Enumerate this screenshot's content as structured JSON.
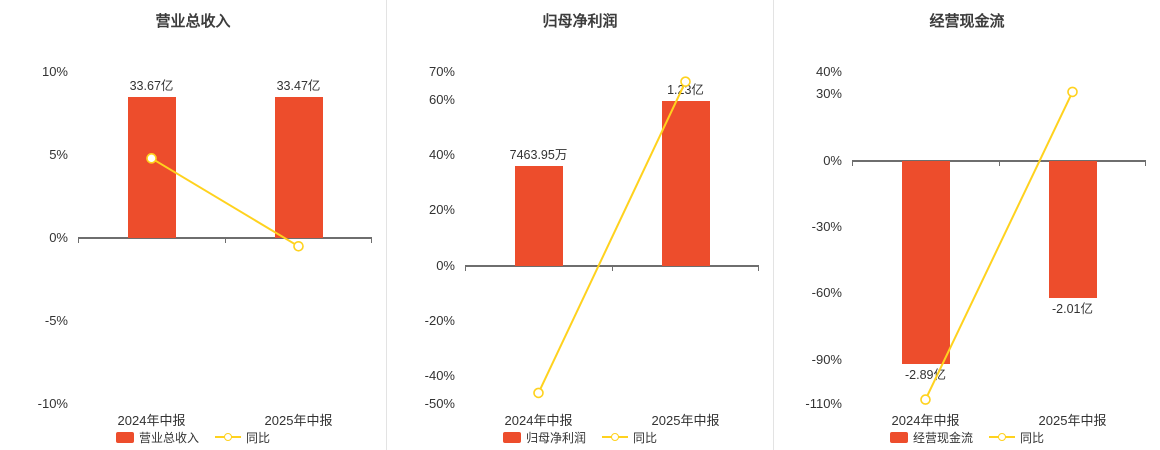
{
  "colors": {
    "bar": "#ed4d2c",
    "line": "#ffd21e",
    "marker_fill": "#ffffff",
    "zero_axis": "#6e6e6e",
    "text": "#333333",
    "separator": "#e3e3e3",
    "background": "#ffffff"
  },
  "chart_data": [
    {
      "type": "bar",
      "overlay": "line",
      "title": "营业总收入",
      "categories": [
        "2024年中报",
        "2025年中报"
      ],
      "bar_series": {
        "name": "营业总收入",
        "labels": [
          "33.67亿",
          "33.47亿"
        ],
        "axis_values": [
          8.5,
          8.5
        ]
      },
      "line_series": {
        "name": "同比",
        "values": [
          4.8,
          -0.5
        ]
      },
      "y_ticks": [
        10,
        5,
        0,
        -5,
        -10
      ],
      "ylim": [
        -10,
        10
      ],
      "tick_suffix": "%",
      "legend_position": "bottom",
      "grid": "off"
    },
    {
      "type": "bar",
      "overlay": "line",
      "title": "归母净利润",
      "categories": [
        "2024年中报",
        "2025年中报"
      ],
      "bar_series": {
        "name": "归母净利润",
        "labels": [
          "7463.95万",
          "1.23亿"
        ],
        "axis_values": [
          36,
          59.5
        ]
      },
      "line_series": {
        "name": "同比",
        "values": [
          -46,
          66.5
        ]
      },
      "y_ticks": [
        70,
        60,
        40,
        20,
        0,
        -20,
        -40,
        -50
      ],
      "ylim": [
        -50,
        70
      ],
      "tick_suffix": "%",
      "legend_position": "bottom",
      "grid": "off"
    },
    {
      "type": "bar",
      "overlay": "line",
      "title": "经营现金流",
      "categories": [
        "2024年中报",
        "2025年中报"
      ],
      "bar_series": {
        "name": "经营现金流",
        "labels": [
          "-2.89亿",
          "-2.01亿"
        ],
        "axis_values": [
          -92,
          -62
        ]
      },
      "line_series": {
        "name": "同比",
        "values": [
          -108,
          31
        ]
      },
      "y_ticks": [
        40,
        30,
        0,
        -30,
        -60,
        -90,
        -110
      ],
      "ylim": [
        -110,
        40
      ],
      "tick_suffix": "%",
      "legend_position": "bottom",
      "grid": "off"
    }
  ]
}
